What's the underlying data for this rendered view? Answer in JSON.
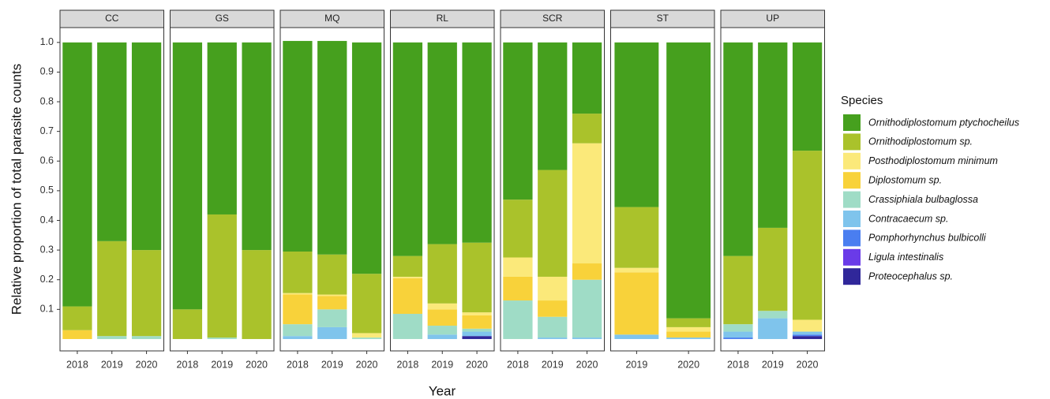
{
  "chart_data": {
    "type": "bar",
    "stacked": true,
    "ylabel": "Relative proportion of total parasite counts",
    "xlabel": "Year",
    "legend_title": "Species",
    "legend_position": "right",
    "ylim": [
      -0.04,
      1.05
    ],
    "yticks": [
      0.1,
      0.2,
      0.3,
      0.4,
      0.5,
      0.6,
      0.7,
      0.8,
      0.9,
      {
        "value": 1,
        "label": "1.0"
      }
    ],
    "series": [
      {
        "name": "Ornithodiplostomum ptychocheilus",
        "color": "#46a01e"
      },
      {
        "name": "Ornithodiplostomum sp.",
        "color": "#aac22b"
      },
      {
        "name": "Posthodiplostomum minimum",
        "color": "#fbe97a"
      },
      {
        "name": "Diplostomum sp.",
        "color": "#f8d23a"
      },
      {
        "name": "Crassiphiala bulbaglossa",
        "color": "#9fdcc6"
      },
      {
        "name": "Contracaecum sp.",
        "color": "#7fc4ec"
      },
      {
        "name": "Pomphorhynchus bulbicolli",
        "color": "#4a7ef0"
      },
      {
        "name": "Ligula intestinalis",
        "color": "#6a3be8"
      },
      {
        "name": "Proteocephalus sp.",
        "color": "#30279a"
      }
    ],
    "facets": [
      {
        "name": "CC",
        "categories": [
          "2018",
          "2019",
          "2020"
        ],
        "values": [
          [
            0.89,
            0.67,
            0.7
          ],
          [
            0.08,
            0.32,
            0.29
          ],
          [
            0,
            0,
            0
          ],
          [
            0.03,
            0,
            0
          ],
          [
            0,
            0.01,
            0.01
          ],
          [
            0,
            0,
            0
          ],
          [
            0,
            0,
            0
          ],
          [
            0,
            0,
            0
          ],
          [
            0,
            0,
            0
          ]
        ]
      },
      {
        "name": "GS",
        "categories": [
          "2018",
          "2019",
          "2020"
        ],
        "values": [
          [
            0.9,
            0.58,
            0.7
          ],
          [
            0.1,
            0.415,
            0.3
          ],
          [
            0,
            0,
            0
          ],
          [
            0,
            0,
            0
          ],
          [
            0,
            0.005,
            0
          ],
          [
            0,
            0,
            0
          ],
          [
            0,
            0,
            0
          ],
          [
            0,
            0,
            0
          ],
          [
            0,
            0,
            0
          ]
        ]
      },
      {
        "name": "MQ",
        "categories": [
          "2018",
          "2019",
          "2020"
        ],
        "values": [
          [
            0.71,
            0.72,
            0.78
          ],
          [
            0.14,
            0.135,
            0.2
          ],
          [
            0.005,
            0.005,
            0.015
          ],
          [
            0.1,
            0.045,
            0
          ],
          [
            0.04,
            0.06,
            0.005
          ],
          [
            0.01,
            0.04,
            0
          ],
          [
            0,
            0,
            0
          ],
          [
            0,
            0,
            0
          ],
          [
            0,
            0,
            0
          ]
        ]
      },
      {
        "name": "RL",
        "categories": [
          "2018",
          "2019",
          "2020"
        ],
        "values": [
          [
            0.72,
            0.68,
            0.675
          ],
          [
            0.07,
            0.2,
            0.235
          ],
          [
            0.005,
            0.02,
            0.01
          ],
          [
            0.12,
            0.055,
            0.045
          ],
          [
            0.085,
            0.03,
            0.01
          ],
          [
            0,
            0.015,
            0.015
          ],
          [
            0,
            0,
            0
          ],
          [
            0,
            0,
            0
          ],
          [
            0,
            0,
            0.01
          ]
        ]
      },
      {
        "name": "SCR",
        "categories": [
          "2018",
          "2019",
          "2020"
        ],
        "values": [
          [
            0.53,
            0.43,
            0.24
          ],
          [
            0.195,
            0.36,
            0.1
          ],
          [
            0.065,
            0.08,
            0.405
          ],
          [
            0.08,
            0.055,
            0.055
          ],
          [
            0.13,
            0.07,
            0.195
          ],
          [
            0,
            0.005,
            0.005
          ],
          [
            0,
            0,
            0
          ],
          [
            0,
            0,
            0
          ],
          [
            0,
            0,
            0
          ]
        ]
      },
      {
        "name": "ST",
        "categories": [
          "2019",
          "2020"
        ],
        "values": [
          [
            0.555,
            0.93
          ],
          [
            0.205,
            0.03
          ],
          [
            0.015,
            0.015
          ],
          [
            0.21,
            0.02
          ],
          [
            0,
            0
          ],
          [
            0.015,
            0.005
          ],
          [
            0,
            0
          ],
          [
            0,
            0
          ],
          [
            0,
            0
          ]
        ]
      },
      {
        "name": "UP",
        "categories": [
          "2018",
          "2019",
          "2020"
        ],
        "values": [
          [
            0.72,
            0.625,
            0.365
          ],
          [
            0.23,
            0.28,
            0.57
          ],
          [
            0,
            0,
            0.04
          ],
          [
            0,
            0,
            0
          ],
          [
            0.025,
            0.025,
            0
          ],
          [
            0.02,
            0.07,
            0.01
          ],
          [
            0.005,
            0,
            0.005
          ],
          [
            0,
            0,
            0
          ],
          [
            0,
            0,
            0.01
          ]
        ]
      }
    ]
  }
}
